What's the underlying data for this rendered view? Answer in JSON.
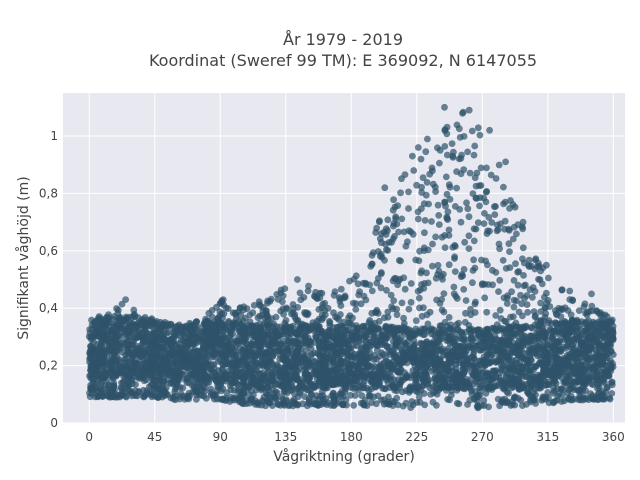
{
  "chart_data": {
    "type": "scatter",
    "title_lines": [
      "År 1979 - 2019",
      "Koordinat (Sweref 99 TM): E 369092, N 6147055"
    ],
    "xlabel": "Vågriktning (grader)",
    "ylabel": "Signifikant våghöjd (m)",
    "xlim": [
      -18,
      368
    ],
    "ylim": [
      0,
      1.15
    ],
    "x_ticks": [
      0,
      45,
      90,
      135,
      180,
      225,
      270,
      315,
      360
    ],
    "x_tick_labels": [
      "0",
      "45",
      "90",
      "135",
      "180",
      "225",
      "270",
      "315",
      "360"
    ],
    "y_ticks": [
      0,
      0.2,
      0.4,
      0.6,
      0.8,
      1.0
    ],
    "y_tick_labels": [
      "0",
      "0,2",
      "0,4",
      "0,6",
      "0,8",
      "1"
    ],
    "grid": true,
    "marker_color": "#2e5369",
    "background_color": "#e8e8f1",
    "envelope": {
      "direction": [
        0,
        10,
        20,
        30,
        45,
        60,
        75,
        90,
        100,
        120,
        135,
        150,
        165,
        180,
        190,
        200,
        210,
        220,
        230,
        240,
        250,
        260,
        265,
        270,
        280,
        290,
        300,
        310,
        320,
        330,
        340,
        350,
        360
      ],
      "min_height": [
        0.09,
        0.09,
        0.09,
        0.09,
        0.09,
        0.08,
        0.08,
        0.08,
        0.07,
        0.06,
        0.06,
        0.06,
        0.06,
        0.06,
        0.06,
        0.06,
        0.06,
        0.05,
        0.05,
        0.05,
        0.05,
        0.05,
        0.05,
        0.05,
        0.06,
        0.06,
        0.06,
        0.07,
        0.07,
        0.08,
        0.08,
        0.08,
        0.08
      ],
      "max_height": [
        0.36,
        0.38,
        0.42,
        0.4,
        0.36,
        0.34,
        0.36,
        0.43,
        0.4,
        0.44,
        0.47,
        0.48,
        0.47,
        0.5,
        0.58,
        0.72,
        0.82,
        0.9,
        0.98,
        1.1,
        1.08,
        1.09,
        1.04,
        1.02,
        0.93,
        0.79,
        0.65,
        0.55,
        0.5,
        0.45,
        0.42,
        0.4,
        0.37
      ]
    },
    "scattered_outliers": [
      {
        "x": 25,
        "y": 0.43
      },
      {
        "x": 92,
        "y": 0.43
      },
      {
        "x": 143,
        "y": 0.5
      },
      {
        "x": 203,
        "y": 0.82
      },
      {
        "x": 222,
        "y": 0.93
      },
      {
        "x": 226,
        "y": 0.96
      },
      {
        "x": 244,
        "y": 1.1
      },
      {
        "x": 261,
        "y": 1.09
      },
      {
        "x": 275,
        "y": 1.02
      },
      {
        "x": 286,
        "y": 0.91
      },
      {
        "x": 298,
        "y": 0.7
      },
      {
        "x": 314,
        "y": 0.55
      },
      {
        "x": 330,
        "y": 0.46
      },
      {
        "x": 345,
        "y": 0.45
      }
    ]
  }
}
